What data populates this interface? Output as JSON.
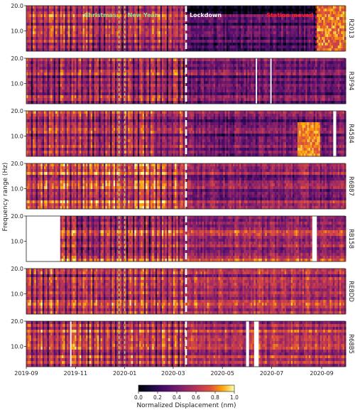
{
  "chart_data": {
    "type": "heatmap",
    "ylabel": "Frequency range (Hz)",
    "y_ticks": [
      10.0,
      20.0
    ],
    "y_tick_labels": [
      "10.0",
      "20.0"
    ],
    "ylim": [
      2.0,
      20.0
    ],
    "x_ticks": [
      "2019-09-01",
      "2019-11-01",
      "2020-01-01",
      "2020-03-01",
      "2020-05-01",
      "2020-07-01",
      "2020-09-01"
    ],
    "x_tick_labels": [
      "2019-09",
      "2019-11",
      "2020-01",
      "2020-03",
      "2020-05",
      "2020-07",
      "2020-09"
    ],
    "xlim": [
      "2019-09-01",
      "2020-09-30"
    ],
    "events": [
      {
        "label": "Christmas",
        "date": "2019-12-25",
        "color": "#98df8a"
      },
      {
        "label": "New Year",
        "date": "2020-01-01",
        "color": "#98df8a"
      },
      {
        "label": "Lockdown",
        "date": "2020-03-17",
        "color": "#ffffff"
      },
      {
        "label": "Station moved",
        "date": "2020-08-25",
        "color": "#ff2020",
        "stations": [
          "R2013"
        ]
      }
    ],
    "stations": [
      {
        "name": "R2013",
        "first_date": "2019-09-01",
        "pre_level": 0.62,
        "post_level": 0.28,
        "gaps": []
      },
      {
        "name": "R3F94",
        "first_date": "2019-09-01",
        "pre_level": 0.6,
        "post_level": 0.4,
        "gaps": [
          [
            "2020-06-10",
            "2020-06-12"
          ],
          [
            "2020-06-28",
            "2020-06-30"
          ]
        ]
      },
      {
        "name": "R4584",
        "first_date": "2019-09-01",
        "pre_level": 0.62,
        "post_level": 0.4,
        "gaps": [
          [
            "2020-09-15",
            "2020-09-17"
          ]
        ]
      },
      {
        "name": "R6B87",
        "first_date": "2019-09-01",
        "pre_level": 0.72,
        "post_level": 0.46,
        "gaps": []
      },
      {
        "name": "RB158",
        "first_date": "2019-10-12",
        "pre_level": 0.68,
        "post_level": 0.58,
        "gaps": [
          [
            "2020-08-20",
            "2020-08-25"
          ]
        ]
      },
      {
        "name": "RE8DD",
        "first_date": "2019-09-01",
        "pre_level": 0.65,
        "post_level": 0.56,
        "gaps": []
      },
      {
        "name": "R68B5",
        "first_date": "2019-09-01",
        "pre_level": 0.66,
        "post_level": 0.55,
        "gaps": [
          [
            "2019-10-24",
            "2019-10-26"
          ],
          [
            "2020-05-29",
            "2020-06-02"
          ],
          [
            "2020-06-08",
            "2020-06-13"
          ]
        ]
      }
    ],
    "colorbar": {
      "label": "Normalized Displacement (nm)",
      "range": [
        0.0,
        1.0
      ],
      "ticks": [
        0.0,
        0.2,
        0.4,
        0.6,
        0.8,
        1.0
      ],
      "tick_labels": [
        "0.0",
        "0.2",
        "0.4",
        "0.6",
        "0.8",
        "1.0"
      ],
      "colormap": "inferno"
    }
  }
}
